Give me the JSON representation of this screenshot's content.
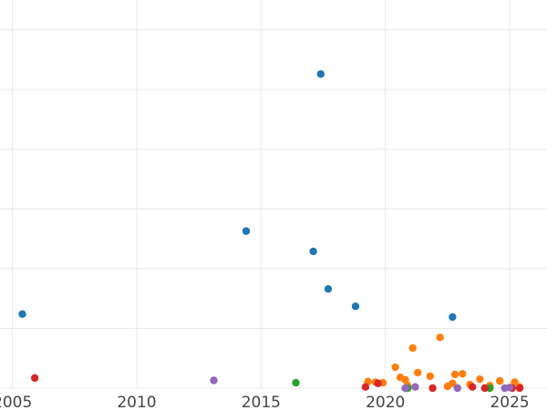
{
  "chart_data": {
    "type": "scatter",
    "title": "",
    "xlabel": "",
    "ylabel": "",
    "xlim": [
      2004.5,
      2026.5
    ],
    "ylim": [
      0,
      65
    ],
    "grid": true,
    "x_ticks": [
      2005,
      2010,
      2015,
      2020,
      2025
    ],
    "x_tick_labels": [
      "2005",
      "2010",
      "2015",
      "2020",
      "2025"
    ],
    "y_gridlines": [
      0,
      10,
      20,
      30,
      40,
      50,
      60
    ],
    "series": [
      {
        "name": "blue",
        "color": "#1f77b4",
        "points": [
          [
            2005.4,
            12.4
          ],
          [
            2014.4,
            26.3
          ],
          [
            2017.1,
            22.9
          ],
          [
            2017.4,
            52.6
          ],
          [
            2017.7,
            16.6
          ],
          [
            2018.8,
            13.7
          ],
          [
            2022.7,
            11.9
          ]
        ]
      },
      {
        "name": "orange",
        "color": "#ff7f0e",
        "points": [
          [
            2019.3,
            1.1
          ],
          [
            2019.6,
            1.0
          ],
          [
            2019.9,
            0.9
          ],
          [
            2020.4,
            3.5
          ],
          [
            2020.6,
            1.8
          ],
          [
            2020.8,
            1.4
          ],
          [
            2020.9,
            0.4
          ],
          [
            2021.1,
            6.7
          ],
          [
            2021.3,
            2.6
          ],
          [
            2021.8,
            2.0
          ],
          [
            2022.2,
            8.5
          ],
          [
            2022.5,
            0.3
          ],
          [
            2022.7,
            0.8
          ],
          [
            2022.8,
            2.3
          ],
          [
            2023.1,
            2.4
          ],
          [
            2023.4,
            0.6
          ],
          [
            2023.8,
            1.5
          ],
          [
            2024.2,
            0.4
          ],
          [
            2024.6,
            1.2
          ],
          [
            2025.2,
            1.0
          ],
          [
            2025.4,
            0.2
          ]
        ]
      },
      {
        "name": "green",
        "color": "#2ca02c",
        "points": [
          [
            2016.4,
            0.9
          ],
          [
            2020.9,
            0.0
          ],
          [
            2024.2,
            0.0
          ]
        ]
      },
      {
        "name": "red",
        "color": "#d62728",
        "points": [
          [
            2005.9,
            1.7
          ],
          [
            2019.2,
            0.2
          ],
          [
            2019.7,
            0.8
          ],
          [
            2021.9,
            0.0
          ],
          [
            2023.5,
            0.2
          ],
          [
            2024.0,
            0.0
          ],
          [
            2025.1,
            0.0
          ],
          [
            2025.4,
            0.0
          ]
        ]
      },
      {
        "name": "purple",
        "color": "#9467bd",
        "points": [
          [
            2013.1,
            1.3
          ],
          [
            2020.8,
            0.0
          ],
          [
            2021.2,
            0.2
          ],
          [
            2022.9,
            0.0
          ],
          [
            2024.8,
            0.0
          ],
          [
            2025.0,
            0.1
          ]
        ]
      }
    ]
  }
}
